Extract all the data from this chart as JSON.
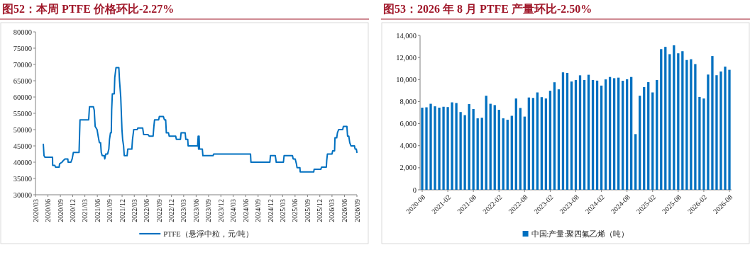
{
  "chart_data": [
    {
      "type": "line",
      "title": "图52：本周 PTFE 价格环比-2.27%",
      "legend": "bottom",
      "xlim": [
        "2020-03",
        "2026-09"
      ],
      "ylim": [
        30000,
        80000
      ],
      "yticks": [
        30000,
        35000,
        40000,
        45000,
        50000,
        55000,
        60000,
        65000,
        70000,
        75000,
        80000
      ],
      "xticks": [
        {
          "value": "2020-03",
          "label": "2020/03"
        },
        {
          "value": "2020-06",
          "label": "2020/06"
        },
        {
          "value": "2020-09",
          "label": "2020/09"
        },
        {
          "value": "2020-12",
          "label": "2020/12"
        },
        {
          "value": "2021-03",
          "label": "2021/03"
        },
        {
          "value": "2021-06",
          "label": "2021/06"
        },
        {
          "value": "2021-09",
          "label": "2021/09"
        },
        {
          "value": "2021-12",
          "label": "2021/12"
        },
        {
          "value": "2022-03",
          "label": "2022/03"
        },
        {
          "value": "2022-06",
          "label": "2022/06"
        },
        {
          "value": "2022-09",
          "label": "2022/09"
        },
        {
          "value": "2022-12",
          "label": "2022/12"
        },
        {
          "value": "2023-03",
          "label": "2023/03"
        },
        {
          "value": "2023-06",
          "label": "2023/06"
        },
        {
          "value": "2023-09",
          "label": "2023/09"
        },
        {
          "value": "2023-12",
          "label": "2023/12"
        },
        {
          "value": "2024-03",
          "label": "2024/03"
        },
        {
          "value": "2024-06",
          "label": "2024/06"
        },
        {
          "value": "2024-09",
          "label": "2024/09"
        },
        {
          "value": "2024-12",
          "label": "2024/12"
        },
        {
          "value": "2025-03",
          "label": "2025/03"
        },
        {
          "value": "2025-06",
          "label": "2025/06"
        },
        {
          "value": "2025-09",
          "label": "2025/09"
        },
        {
          "value": "2025-12",
          "label": "2025/12"
        },
        {
          "value": "2026-03",
          "label": "2026/03"
        },
        {
          "value": "2026-06",
          "label": "2026/06"
        },
        {
          "value": "2026-09",
          "label": "2026/09"
        }
      ],
      "x": [
        "2020-04-28",
        "2020-05-03",
        "2020-05-10",
        "2020-07-05",
        "2020-07-06",
        "2020-07-22",
        "2020-07-27",
        "2020-08-23",
        "2020-08-26",
        "2020-09-13",
        "2020-09-23",
        "2020-10-05",
        "2020-10-26",
        "2020-10-28",
        "2020-11-18",
        "2020-11-27",
        "2020-12-06",
        "2021-01-17",
        "2021-01-24",
        "2021-03-29",
        "2021-04-04",
        "2021-05-03",
        "2021-05-09",
        "2021-05-16",
        "2021-05-30",
        "2021-06-07",
        "2021-06-16",
        "2021-06-25",
        "2021-06-30",
        "2021-07-07",
        "2021-07-21",
        "2021-07-26",
        "2021-08-02",
        "2021-08-16",
        "2021-08-25",
        "2021-08-30",
        "2021-09-06",
        "2021-09-12",
        "2021-09-15",
        "2021-09-20",
        "2021-10-04",
        "2021-10-08",
        "2021-10-17",
        "2021-11-07",
        "2021-11-12",
        "2021-11-21",
        "2021-11-30",
        "2021-12-05",
        "2021-12-12",
        "2021-12-17",
        "2022-01-07",
        "2022-01-12",
        "2022-02-11",
        "2022-02-16",
        "2022-02-25",
        "2022-03-23",
        "2022-03-27",
        "2022-05-02",
        "2022-05-09",
        "2022-06-10",
        "2022-06-19",
        "2022-07-18",
        "2022-07-24",
        "2022-07-29",
        "2022-08-28",
        "2022-09-02",
        "2022-10-02",
        "2022-10-10",
        "2022-10-19",
        "2022-10-24",
        "2022-11-09",
        "2022-11-14",
        "2023-01-01",
        "2023-01-06",
        "2023-02-05",
        "2023-02-10",
        "2023-03-12",
        "2023-03-17",
        "2023-03-31",
        "2023-04-03",
        "2023-06-12",
        "2023-06-16",
        "2023-06-19",
        "2023-06-23",
        "2023-06-26",
        "2023-07-17",
        "2023-07-21",
        "2023-10-04",
        "2023-10-09",
        "2024-07-07",
        "2024-07-10",
        "2024-11-27",
        "2024-12-01",
        "2025-01-06",
        "2025-01-13",
        "2025-03-07",
        "2025-03-12",
        "2025-05-13",
        "2025-05-18",
        "2025-06-02",
        "2025-06-11",
        "2025-06-16",
        "2025-07-07",
        "2025-07-09",
        "2025-10-17",
        "2025-10-20",
        "2025-12-08",
        "2025-12-14",
        "2026-01-18",
        "2026-01-21",
        "2026-01-26",
        "2026-03-01",
        "2026-03-06",
        "2026-03-20",
        "2026-03-23",
        "2026-04-05",
        "2026-04-10",
        "2026-04-19",
        "2026-05-19",
        "2026-05-24",
        "2026-06-19",
        "2026-06-24",
        "2026-07-03",
        "2026-07-10",
        "2026-07-19",
        "2026-08-14",
        "2026-08-19",
        "2026-08-28",
        "2026-09-01"
      ],
      "series": [
        {
          "name": "PTFE（悬浮中粒，元/吨）",
          "color": "#0070c0",
          "values": [
            45500,
            42000,
            41500,
            41500,
            39000,
            39000,
            38500,
            38500,
            39500,
            40000,
            40500,
            41000,
            41000,
            40000,
            40000,
            41000,
            43000,
            43000,
            53000,
            53000,
            57000,
            57000,
            56000,
            51000,
            50000,
            48000,
            46000,
            46000,
            43000,
            42000,
            42000,
            41000,
            42500,
            42500,
            44000,
            47000,
            49000,
            49000,
            56000,
            61000,
            61000,
            66000,
            69000,
            69000,
            65000,
            60000,
            50000,
            47000,
            45000,
            42000,
            42000,
            44000,
            44000,
            47000,
            50000,
            50000,
            50500,
            50500,
            48500,
            48500,
            48000,
            48000,
            51000,
            53000,
            53000,
            54000,
            54000,
            53000,
            53000,
            49000,
            49000,
            48000,
            48000,
            47000,
            47000,
            49000,
            49000,
            47000,
            47000,
            45000,
            45000,
            48000,
            44000,
            48000,
            44000,
            44000,
            42000,
            42000,
            42500,
            42500,
            40000,
            40000,
            42000,
            42000,
            40000,
            40000,
            42000,
            42000,
            41000,
            41000,
            39500,
            38300,
            38300,
            37000,
            37000,
            37800,
            37800,
            38500,
            38500,
            40500,
            42500,
            42500,
            43500,
            43500,
            47500,
            47500,
            49000,
            50000,
            50000,
            51000,
            51000,
            48000,
            48000,
            46000,
            45000,
            45000,
            44000,
            44000,
            43000
          ]
        }
      ]
    },
    {
      "type": "bar",
      "title": "图53：2026 年 8 月 PTFE 产量环比-2.50%",
      "legend": "bottom",
      "ylim": [
        0,
        14000
      ],
      "yticks": [
        0,
        {
          "value": 2000,
          "label": "2,000"
        },
        {
          "value": 4000,
          "label": "4,000"
        },
        {
          "value": 6000,
          "label": "6,000"
        },
        {
          "value": 8000,
          "label": "8,000"
        },
        {
          "value": 10000,
          "label": "10,000"
        },
        {
          "value": 12000,
          "label": "12,000"
        },
        {
          "value": 14000,
          "label": "14,000"
        }
      ],
      "categories": [
        "2020-08",
        null,
        null,
        null,
        null,
        null,
        "2021-02",
        null,
        null,
        null,
        null,
        null,
        "2021-08",
        null,
        null,
        null,
        null,
        null,
        "2022-02",
        null,
        null,
        null,
        null,
        null,
        "2022-08",
        null,
        null,
        null,
        null,
        null,
        "2023-02",
        null,
        null,
        null,
        null,
        null,
        "2023-08",
        null,
        null,
        null,
        null,
        null,
        "2024-02",
        null,
        null,
        null,
        null,
        null,
        "2024-08",
        null,
        null,
        null,
        null,
        null,
        "2025-02",
        null,
        null,
        null,
        null,
        null,
        "2025-08",
        null,
        null,
        null,
        null,
        null,
        "2026-02",
        null,
        null,
        null,
        null,
        null,
        "2026-08"
      ],
      "series": [
        {
          "name": "中国:产量:聚四氟乙烯（吨）",
          "color": "#0070c0",
          "values": [
            7450,
            7480,
            7800,
            7570,
            7450,
            7530,
            7500,
            7930,
            7870,
            7050,
            6770,
            7770,
            7320,
            6480,
            6530,
            8530,
            7800,
            7680,
            7250,
            6480,
            6350,
            6710,
            8280,
            7420,
            6640,
            8370,
            8330,
            8830,
            8400,
            8280,
            8980,
            9750,
            9110,
            10650,
            10600,
            9820,
            9950,
            10380,
            9960,
            10430,
            9960,
            9900,
            9450,
            10010,
            10230,
            10120,
            10170,
            9890,
            10020,
            10230,
            5050,
            8530,
            9310,
            9760,
            8830,
            9960,
            12760,
            12960,
            12300,
            13100,
            12380,
            12570,
            11770,
            11840,
            11400,
            8420,
            8280,
            10450,
            12130,
            10390,
            10730,
            11170,
            10880
          ]
        }
      ]
    }
  ]
}
